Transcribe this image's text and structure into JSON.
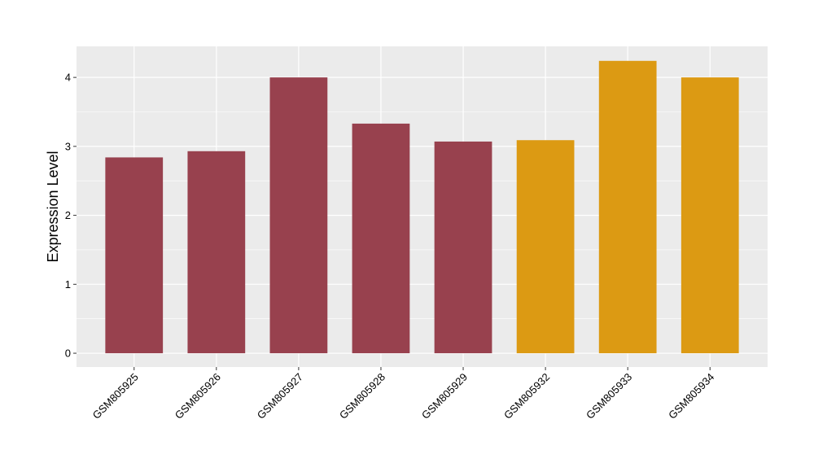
{
  "chart_data": {
    "type": "bar",
    "categories": [
      "GSM805925",
      "GSM805926",
      "GSM805927",
      "GSM805928",
      "GSM805929",
      "GSM805932",
      "GSM805933",
      "GSM805934"
    ],
    "values": [
      2.84,
      2.93,
      4.0,
      3.33,
      3.07,
      3.09,
      4.24,
      4.0
    ],
    "bar_colors": [
      "#98414E",
      "#98414E",
      "#98414E",
      "#98414E",
      "#98414E",
      "#DC9A13",
      "#DC9A13",
      "#DC9A13"
    ],
    "colors": {
      "group_a": "#98414E",
      "group_b": "#DC9A13",
      "panel_background": "#EBEBEB",
      "gridline": "#FFFFFF"
    },
    "title": "",
    "xlabel": "",
    "ylabel": "Expression Level",
    "ylim": [
      -0.2,
      4.45
    ],
    "yticks": [
      0,
      1,
      2,
      3,
      4
    ],
    "grid": true,
    "legend": "none"
  }
}
